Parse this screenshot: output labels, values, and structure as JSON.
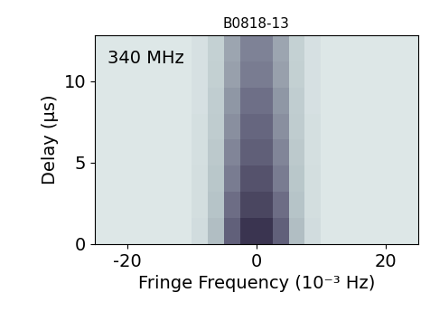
{
  "chart_data": {
    "type": "heatmap",
    "title": "B0818-13",
    "annotation": "340 MHz",
    "x_label": "Fringe Frequency (10⁻³ Hz)",
    "y_label": "Delay (μs)",
    "x_edges": [
      -25,
      -22.5,
      -20,
      -17.5,
      -15,
      -12.5,
      -10,
      -7.5,
      -5,
      -2.5,
      0,
      2.5,
      5,
      7.5,
      10,
      12.5,
      15,
      17.5,
      20,
      22.5,
      25
    ],
    "y_edges": [
      0,
      1.6,
      3.2,
      4.8,
      6.4,
      8.0,
      9.6,
      11.2,
      12.8
    ],
    "cells": [
      [
        0.05,
        0.05,
        0.05,
        0.05,
        0.05,
        0.05,
        0.13,
        0.35,
        0.75,
        1.0,
        1.0,
        0.75,
        0.35,
        0.13,
        0.05,
        0.05,
        0.05,
        0.05,
        0.05,
        0.05
      ],
      [
        0.05,
        0.05,
        0.05,
        0.05,
        0.05,
        0.05,
        0.12,
        0.32,
        0.68,
        0.9,
        0.9,
        0.68,
        0.32,
        0.12,
        0.05,
        0.05,
        0.05,
        0.05,
        0.05,
        0.05
      ],
      [
        0.05,
        0.05,
        0.05,
        0.05,
        0.05,
        0.05,
        0.12,
        0.3,
        0.62,
        0.83,
        0.83,
        0.62,
        0.3,
        0.12,
        0.05,
        0.05,
        0.05,
        0.05,
        0.05,
        0.05
      ],
      [
        0.05,
        0.05,
        0.05,
        0.05,
        0.05,
        0.05,
        0.11,
        0.28,
        0.58,
        0.76,
        0.76,
        0.58,
        0.28,
        0.11,
        0.05,
        0.05,
        0.05,
        0.05,
        0.05,
        0.05
      ],
      [
        0.05,
        0.05,
        0.05,
        0.05,
        0.05,
        0.05,
        0.11,
        0.26,
        0.54,
        0.72,
        0.72,
        0.54,
        0.26,
        0.11,
        0.05,
        0.05,
        0.05,
        0.05,
        0.05,
        0.05
      ],
      [
        0.05,
        0.05,
        0.05,
        0.05,
        0.05,
        0.05,
        0.1,
        0.25,
        0.51,
        0.67,
        0.67,
        0.51,
        0.25,
        0.1,
        0.05,
        0.05,
        0.05,
        0.05,
        0.05,
        0.05
      ],
      [
        0.05,
        0.05,
        0.05,
        0.05,
        0.05,
        0.05,
        0.1,
        0.23,
        0.47,
        0.62,
        0.62,
        0.47,
        0.23,
        0.1,
        0.05,
        0.05,
        0.05,
        0.05,
        0.05,
        0.05
      ],
      [
        0.05,
        0.05,
        0.05,
        0.05,
        0.05,
        0.05,
        0.1,
        0.22,
        0.45,
        0.59,
        0.59,
        0.45,
        0.22,
        0.1,
        0.05,
        0.05,
        0.05,
        0.05,
        0.05,
        0.05
      ]
    ],
    "zlim": [
      0,
      1
    ],
    "xlim": [
      -25,
      25
    ],
    "xticks": [
      -20,
      0,
      20
    ],
    "ylim": [
      0,
      12.8
    ],
    "yticks": [
      0,
      5,
      10
    ]
  }
}
